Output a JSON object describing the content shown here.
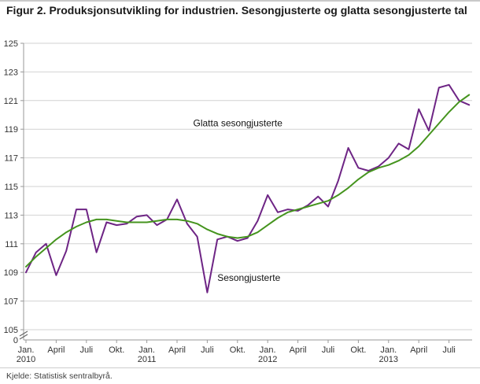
{
  "title": "Figur 2. Produksjonsutvikling for industrien. Sesongjusterte og glatta sesongjusterte tal",
  "source": "Kjelde: Statistisk sentralbyrå.",
  "chart_data": {
    "type": "line",
    "title": "Figur 2. Produksjonsutvikling for industrien. Sesongjusterte og glatta sesongjusterte tal",
    "xlabel": "",
    "ylabel": "",
    "ylim": [
      105,
      125
    ],
    "grid": true,
    "x_unit": "month",
    "x_start": "Jan. 2010",
    "y_ticks": [
      105,
      107,
      109,
      111,
      113,
      115,
      117,
      119,
      121,
      123,
      125
    ],
    "y_axis_break_label": "0",
    "x_ticks": [
      {
        "m": 0,
        "label": "Jan.",
        "year": "2010"
      },
      {
        "m": 3,
        "label": "April"
      },
      {
        "m": 6,
        "label": "Juli"
      },
      {
        "m": 9,
        "label": "Okt."
      },
      {
        "m": 12,
        "label": "Jan.",
        "year": "2011"
      },
      {
        "m": 15,
        "label": "April"
      },
      {
        "m": 18,
        "label": "Juli"
      },
      {
        "m": 21,
        "label": "Okt."
      },
      {
        "m": 24,
        "label": "Jan.",
        "year": "2012"
      },
      {
        "m": 27,
        "label": "April"
      },
      {
        "m": 30,
        "label": "Juli"
      },
      {
        "m": 33,
        "label": "Okt."
      },
      {
        "m": 36,
        "label": "Jan.",
        "year": "2013"
      },
      {
        "m": 39,
        "label": "April"
      },
      {
        "m": 42,
        "label": "Juli"
      }
    ],
    "series": [
      {
        "name": "Sesongjusterte",
        "color": "#6e2585",
        "values": [
          109.0,
          110.4,
          111.0,
          108.8,
          110.5,
          113.4,
          113.4,
          110.4,
          112.5,
          112.3,
          112.4,
          112.9,
          113.0,
          112.3,
          112.7,
          114.1,
          112.4,
          111.5,
          107.6,
          111.3,
          111.5,
          111.2,
          111.4,
          112.6,
          114.4,
          113.2,
          113.4,
          113.3,
          113.7,
          114.3,
          113.6,
          115.4,
          117.7,
          116.3,
          116.1,
          116.4,
          117.0,
          118.0,
          117.6,
          120.4,
          118.9,
          121.9,
          122.1,
          121.0,
          120.7
        ]
      },
      {
        "name": "Glatta sesongjusterte",
        "color": "#45941e",
        "values": [
          109.4,
          110.1,
          110.7,
          111.3,
          111.8,
          112.2,
          112.5,
          112.7,
          112.7,
          112.6,
          112.5,
          112.5,
          112.5,
          112.6,
          112.7,
          112.7,
          112.6,
          112.4,
          112.0,
          111.7,
          111.5,
          111.4,
          111.5,
          111.8,
          112.3,
          112.8,
          113.2,
          113.4,
          113.6,
          113.8,
          114.0,
          114.4,
          114.9,
          115.5,
          116.0,
          116.3,
          116.5,
          116.8,
          117.2,
          117.8,
          118.6,
          119.4,
          120.2,
          120.9,
          121.4
        ]
      }
    ],
    "annotations": [
      {
        "text": "Glatta sesongjusterte",
        "month": 16.6,
        "value": 119.2
      },
      {
        "text": "Sesongjusterte",
        "month": 19.0,
        "value": 108.4
      }
    ],
    "legend": "inline-annotations"
  }
}
